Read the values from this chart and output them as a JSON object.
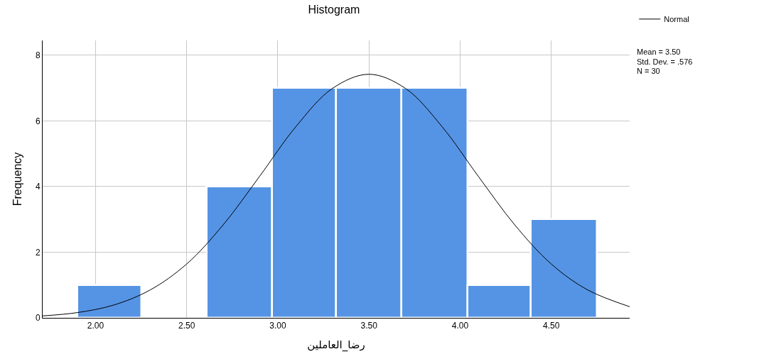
{
  "chart_data": {
    "type": "histogram",
    "title": "Histogram",
    "xlabel": "رضا_العاملين",
    "ylabel": "Frequency",
    "bins": [
      1.9,
      2.25,
      2.61,
      2.97,
      3.32,
      3.68,
      4.04,
      4.39,
      4.75
    ],
    "values": [
      1,
      0,
      4,
      7,
      7,
      7,
      1,
      3
    ],
    "color": "#5594e4",
    "series": [
      {
        "type": "line",
        "name": "Normal",
        "color": "#000000",
        "x": [
          1.71,
          1.9,
          2.1,
          2.3,
          2.5,
          2.7,
          2.9,
          3.1,
          3.3,
          3.5,
          3.7,
          3.9,
          4.1,
          4.3,
          4.5,
          4.7,
          4.93
        ],
        "values": [
          0.06,
          0.16,
          0.39,
          0.85,
          1.64,
          2.83,
          4.31,
          5.83,
          6.99,
          7.42,
          6.99,
          5.83,
          4.31,
          2.83,
          1.64,
          0.85,
          0.34
        ]
      }
    ],
    "xlim": [
      1.71,
      4.93
    ],
    "xticks": [
      {
        "value": 2,
        "label": "2.00"
      },
      {
        "value": 2.5,
        "label": "2.50"
      },
      {
        "value": 3,
        "label": "3.00"
      },
      {
        "value": 3.5,
        "label": "3.50"
      },
      {
        "value": 4,
        "label": "4.00"
      },
      {
        "value": 4.5,
        "label": "4.50"
      }
    ],
    "ylim": [
      0,
      8.45
    ],
    "yticks": [
      0,
      2,
      4,
      6,
      8
    ],
    "grid": true,
    "legend": "top right",
    "annotations": [
      "Mean = 3.50",
      "Std. Dev. = .576",
      "N = 30"
    ]
  }
}
